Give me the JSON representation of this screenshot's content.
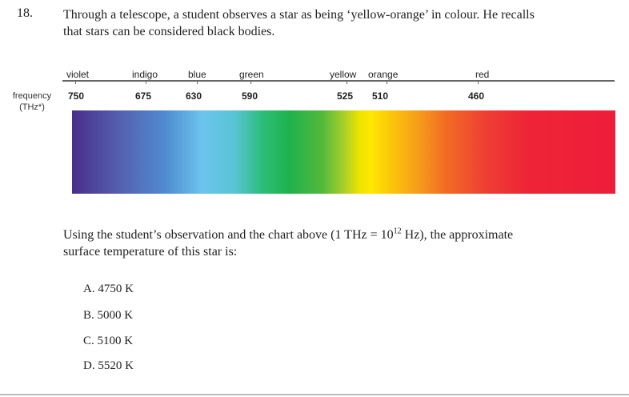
{
  "question": {
    "number": "18.",
    "text_line1": "Through a telescope, a student observes a star as being ‘yellow-orange’ in colour. He recalls",
    "text_line2": "that stars can be considered black bodies."
  },
  "chart": {
    "axis_title_line1": "frequency",
    "axis_title_line2": "(THz*)",
    "colours": [
      "violet",
      "indigo",
      "blue",
      "green",
      "yellow",
      "orange",
      "red"
    ],
    "frequencies": [
      "750",
      "675",
      "630",
      "590",
      "525",
      "510",
      "460"
    ]
  },
  "stem": {
    "line1_a": "Using the student’s observation and the chart above (1 THz = 10",
    "line1_sup": "12",
    "line1_b": " Hz), the approximate",
    "line2": "surface temperature of this star is:"
  },
  "options": [
    "A.  4750 K",
    "B.  5000 K",
    "C.  5100 K",
    "D.  5520 K"
  ]
}
